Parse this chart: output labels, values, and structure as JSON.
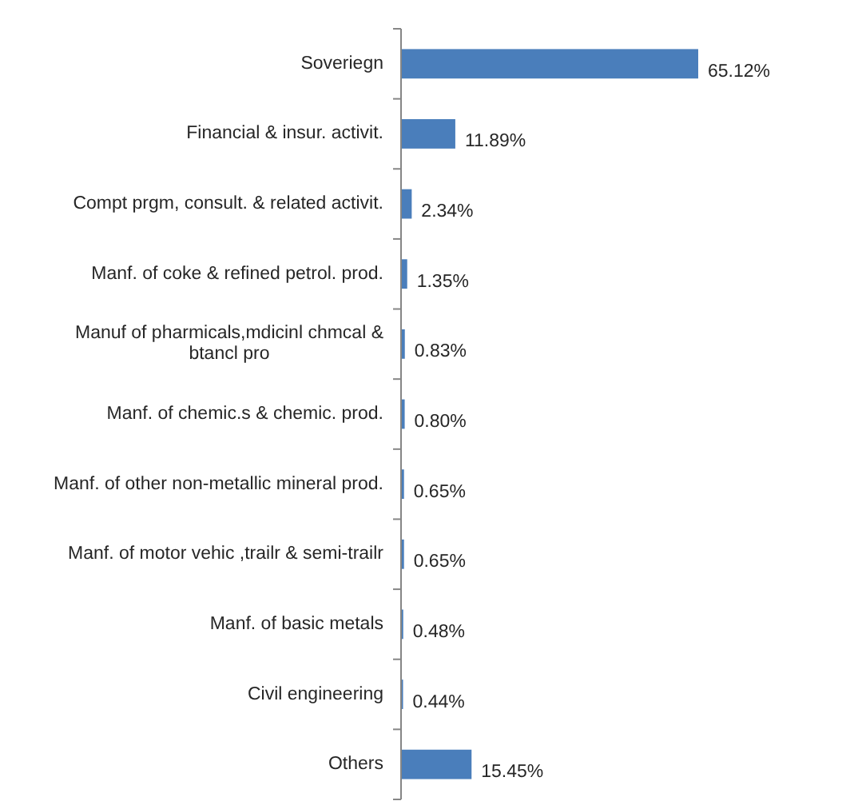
{
  "chart_data": {
    "type": "bar",
    "orientation": "horizontal",
    "categories": [
      "Soveriegn",
      "Financial & insur. activit.",
      "Compt prgm, consult. & related activit.",
      "Manf. of coke & refined petrol. prod.",
      "Manuf of pharmicals,mdicinl chmcal & btancl pro",
      "Manf. of chemic.s & chemic. prod.",
      "Manf. of other non-metallic mineral prod.",
      "Manf. of motor vehic ,trailr & semi-trailr",
      "Manf. of basic metals",
      "Civil engineering",
      "Others"
    ],
    "values": [
      65.12,
      11.89,
      2.34,
      1.35,
      0.83,
      0.8,
      0.65,
      0.65,
      0.48,
      0.44,
      15.45
    ],
    "value_labels": [
      "65.12%",
      "11.89%",
      "2.34%",
      "1.35%",
      "0.83%",
      "0.80%",
      "0.65%",
      "0.65%",
      "0.48%",
      "0.44%",
      "15.45%"
    ],
    "color": "#4a7ebb"
  }
}
